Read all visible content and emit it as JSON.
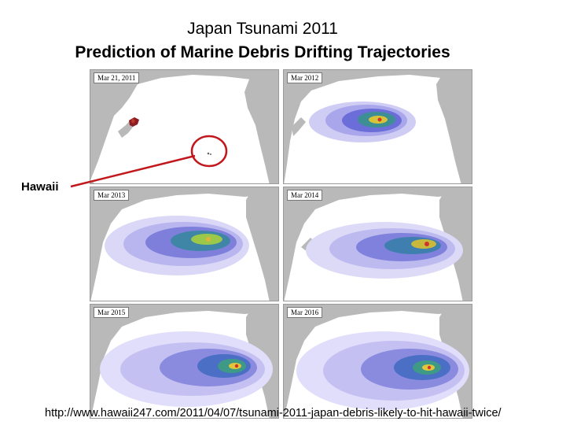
{
  "title_line1": "Japan Tsunami 2011",
  "title_line2": "Prediction of Marine Debris Drifting Trajectories",
  "callout_label": "Hawaii",
  "source_url": "http://www.hawaii247.com/2011/04/07/tsunami-2011-japan-debris-likely-to-hit-hawaii-twice/",
  "colors": {
    "land": "#b9b9b9",
    "ocean": "#ffffff",
    "debris_low": "#c8c6f2",
    "debris_mid": "#5a5fd0",
    "debris_core": "#3a9a8a",
    "debris_peak": "#e8d23a",
    "debris_hot": "#d0342c",
    "callout": "#c0181c"
  },
  "panels": [
    {
      "label": "Mar 21, 2011"
    },
    {
      "label": "Mar 2012"
    },
    {
      "label": "Mar 2013"
    },
    {
      "label": "Mar 2014"
    },
    {
      "label": "Mar 2015"
    },
    {
      "label": "Mar 2016"
    }
  ]
}
